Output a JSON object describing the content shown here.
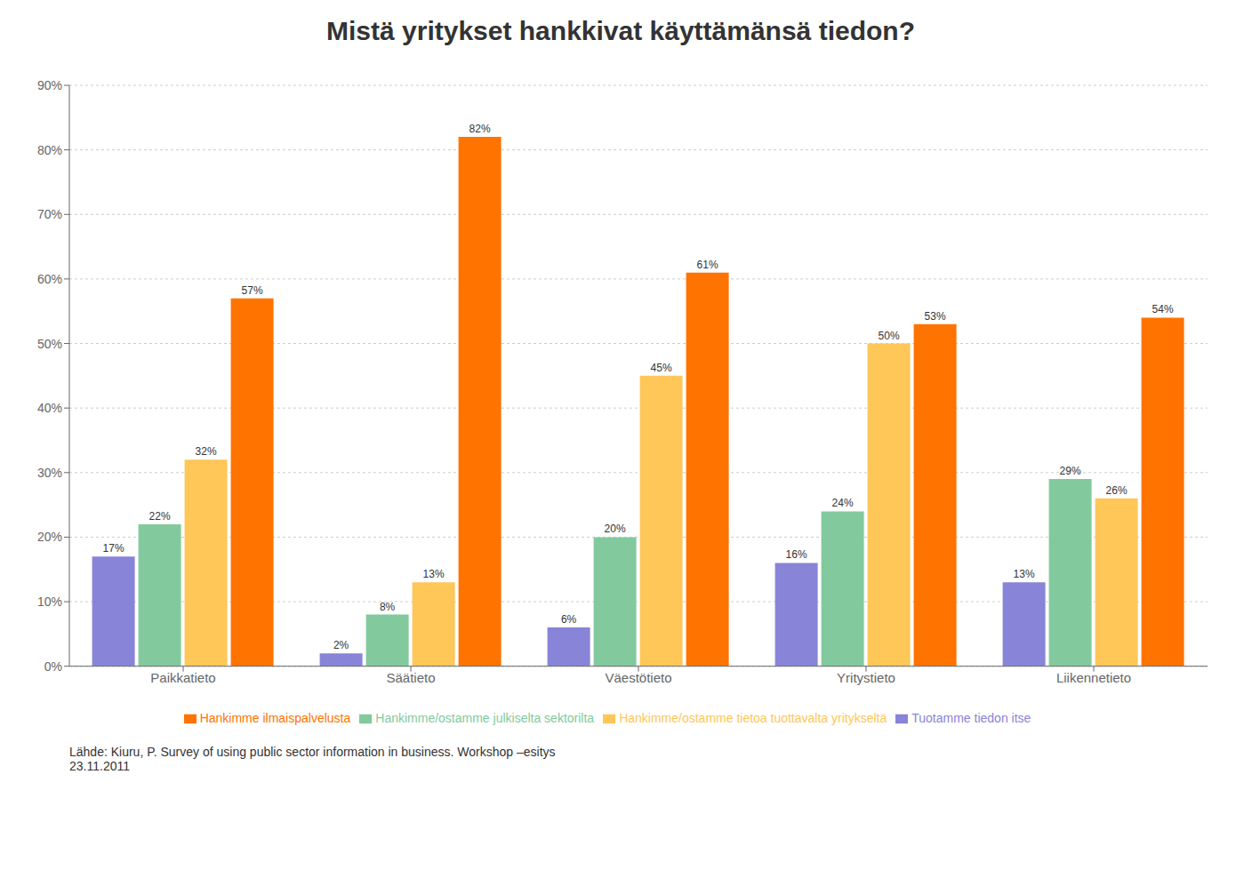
{
  "chart_data": {
    "type": "bar",
    "title": "Mistä yritykset hankkivat käyttämänsä tiedon?",
    "categories": [
      "Paikkatieto",
      "Säätieto",
      "Väestötieto",
      "Yritystieto",
      "Liikennetieto"
    ],
    "series": [
      {
        "name": "Tuotamme tiedon itse",
        "color": "#8884d8",
        "values": [
          17,
          2,
          6,
          16,
          13
        ],
        "value_labels": [
          "17%",
          "2%",
          "6%",
          "16%",
          "13%"
        ]
      },
      {
        "name": "Hankimme/ostamme julkiselta sektorilta",
        "color": "#82ca9d",
        "values": [
          22,
          8,
          20,
          24,
          29
        ],
        "value_labels": [
          "22%",
          "8%",
          "20%",
          "24%",
          "29%"
        ]
      },
      {
        "name": "Hankimme/ostamme tietoa tuottavalta yritykseltä",
        "color": "#ffc658",
        "values": [
          32,
          13,
          45,
          50,
          26
        ],
        "value_labels": [
          "32%",
          "13%",
          "45%",
          "50%",
          "26%"
        ]
      },
      {
        "name": "Hankimme ilmaispalvelusta",
        "color": "#ff7300",
        "values": [
          57,
          82,
          61,
          53,
          54
        ],
        "value_labels": [
          "57%",
          "82%",
          "61%",
          "53%",
          "54%"
        ]
      }
    ],
    "ylim": [
      0,
      90
    ],
    "yticks": [
      {
        "value": 0,
        "label": "0%"
      },
      {
        "value": 10,
        "label": "10%"
      },
      {
        "value": 20,
        "label": "20%"
      },
      {
        "value": 30,
        "label": "30%"
      },
      {
        "value": 40,
        "label": "40%"
      },
      {
        "value": 50,
        "label": "50%"
      },
      {
        "value": 60,
        "label": "60%"
      },
      {
        "value": 70,
        "label": "70%"
      },
      {
        "value": 80,
        "label": "80%"
      },
      {
        "value": 90,
        "label": "90%"
      }
    ],
    "grid": true,
    "legend": "bottom",
    "data_labels": true,
    "annotations": [
      "Lähde: Kiuru, P.   Survey of using public sector information in business. Workshop –esitys\n23.11.2011"
    ]
  }
}
